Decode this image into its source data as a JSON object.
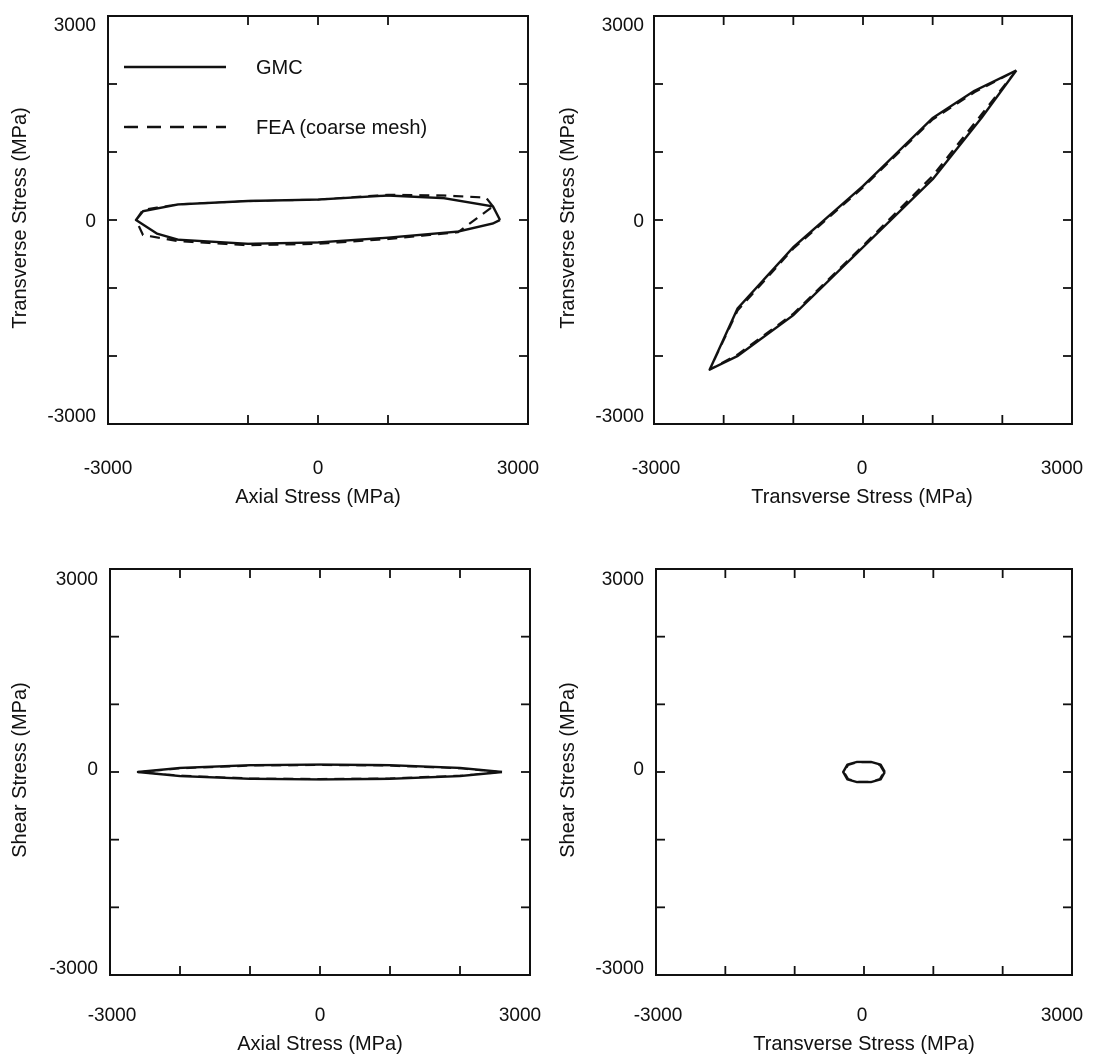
{
  "colors": {
    "ink": "#111111",
    "background": "#ffffff"
  },
  "legend": {
    "placement": "top-left of first panel",
    "entries": [
      {
        "label": "GMC",
        "style": "solid"
      },
      {
        "label": "FEA (coarse mesh)",
        "style": "dashed"
      }
    ]
  },
  "chart_data": [
    {
      "type": "line",
      "xlabel": "Axial Stress (MPa)",
      "ylabel": "Transverse Stress (MPa)",
      "xlim": [
        -3000,
        3000
      ],
      "ylim": [
        -3000,
        3000
      ],
      "x_tick_labels": [
        "-3000",
        "0",
        "3000"
      ],
      "y_tick_labels": [
        "3000",
        "0",
        "-3000"
      ],
      "x_ticks": [
        -3000,
        -1000,
        0,
        1000,
        3000
      ],
      "y_ticks": [
        -3000,
        -2000,
        -1000,
        0,
        1000,
        2000,
        3000
      ],
      "series": [
        {
          "name": "GMC",
          "style": "solid",
          "x": [
            2600,
            2500,
            1800,
            1000,
            0,
            -1000,
            -2000,
            -2500,
            -2600,
            -2300,
            -2000,
            -1000,
            0,
            1000,
            2000,
            2500,
            2600
          ],
          "y": [
            0,
            200,
            320,
            360,
            300,
            280,
            230,
            130,
            0,
            -200,
            -290,
            -350,
            -330,
            -260,
            -170,
            -50,
            0
          ]
        },
        {
          "name": "FEA (coarse mesh)",
          "style": "dashed",
          "x": [
            2500,
            2400,
            1800,
            1000,
            0,
            -1000,
            -2000,
            -2500,
            -2600,
            -2500,
            -2000,
            -1000,
            0,
            1000,
            2000,
            2500
          ],
          "y": [
            200,
            330,
            360,
            370,
            300,
            280,
            230,
            150,
            0,
            -220,
            -310,
            -370,
            -350,
            -280,
            -180,
            200
          ]
        }
      ]
    },
    {
      "type": "line",
      "xlabel": "Transverse Stress (MPa)",
      "ylabel": "Transverse Stress (MPa)",
      "xlim": [
        -3000,
        3000
      ],
      "ylim": [
        -3000,
        3000
      ],
      "x_tick_labels": [
        "-3000",
        "0",
        "3000"
      ],
      "y_tick_labels": [
        "3000",
        "0",
        "-3000"
      ],
      "x_ticks": [
        -3000,
        -2000,
        -1000,
        0,
        1000,
        2000,
        3000
      ],
      "y_ticks": [
        -3000,
        -2000,
        -1000,
        0,
        1000,
        2000,
        3000
      ],
      "series": [
        {
          "name": "GMC",
          "style": "solid",
          "x": [
            2200,
            1700,
            1000,
            0,
            -1000,
            -1800,
            -2200,
            -1800,
            -1000,
            0,
            1000,
            1600,
            2200
          ],
          "y": [
            2200,
            1500,
            600,
            -400,
            -1400,
            -2000,
            -2200,
            -1300,
            -400,
            500,
            1500,
            1900,
            2200
          ]
        },
        {
          "name": "FEA (coarse mesh)",
          "style": "dashed",
          "x": [
            2200,
            1700,
            1000,
            0,
            -1000,
            -1800,
            -2200,
            -1800,
            -1000,
            0,
            1000,
            1600,
            2200
          ],
          "y": [
            2200,
            1550,
            650,
            -380,
            -1380,
            -1980,
            -2200,
            -1330,
            -420,
            480,
            1480,
            1880,
            2200
          ]
        }
      ]
    },
    {
      "type": "line",
      "xlabel": "Axial Stress (MPa)",
      "ylabel": "Shear Stress (MPa)",
      "xlim": [
        -3000,
        3000
      ],
      "ylim": [
        -3000,
        3000
      ],
      "x_tick_labels": [
        "-3000",
        "0",
        "3000"
      ],
      "y_tick_labels": [
        "3000",
        "0",
        "-3000"
      ],
      "x_ticks": [
        -3000,
        -2000,
        -1000,
        0,
        1000,
        2000,
        3000
      ],
      "y_ticks": [
        -3000,
        -2000,
        -1000,
        0,
        1000,
        2000,
        3000
      ],
      "series": [
        {
          "name": "GMC",
          "style": "solid",
          "x": [
            2600,
            2000,
            1000,
            0,
            -1000,
            -2000,
            -2600,
            -2000,
            -1000,
            0,
            1000,
            2000,
            2600
          ],
          "y": [
            0,
            60,
            100,
            110,
            100,
            60,
            0,
            -60,
            -100,
            -110,
            -100,
            -60,
            0
          ]
        },
        {
          "name": "FEA (coarse mesh)",
          "style": "dashed",
          "x": [
            2600,
            2000,
            1000,
            0,
            -1000,
            -2000,
            -2600,
            -2000,
            -1000,
            0,
            1000,
            2000,
            2600
          ],
          "y": [
            0,
            55,
            95,
            105,
            95,
            55,
            0,
            -55,
            -95,
            -105,
            -95,
            -55,
            0
          ]
        }
      ]
    },
    {
      "type": "line",
      "xlabel": "Transverse Stress (MPa)",
      "ylabel": "Shear Stress (MPa)",
      "xlim": [
        -3000,
        3000
      ],
      "ylim": [
        -3000,
        3000
      ],
      "x_tick_labels": [
        "-3000",
        "0",
        "3000"
      ],
      "y_tick_labels": [
        "3000",
        "0",
        "-3000"
      ],
      "x_ticks": [
        -3000,
        -2000,
        -1000,
        0,
        1000,
        2000,
        3000
      ],
      "y_ticks": [
        -3000,
        -2000,
        -1000,
        0,
        1000,
        2000,
        3000
      ],
      "series": [
        {
          "name": "GMC",
          "style": "solid",
          "x": [
            300,
            240,
            100,
            -100,
            -240,
            -300,
            -240,
            -100,
            100,
            240,
            300
          ],
          "y": [
            0,
            110,
            150,
            150,
            110,
            0,
            -110,
            -150,
            -150,
            -110,
            0
          ]
        },
        {
          "name": "FEA (coarse mesh)",
          "style": "dashed",
          "x": [
            290,
            230,
            100,
            -100,
            -230,
            -290,
            -230,
            -100,
            100,
            230,
            290
          ],
          "y": [
            0,
            105,
            145,
            145,
            105,
            0,
            -105,
            -145,
            -145,
            -105,
            0
          ]
        }
      ]
    }
  ]
}
